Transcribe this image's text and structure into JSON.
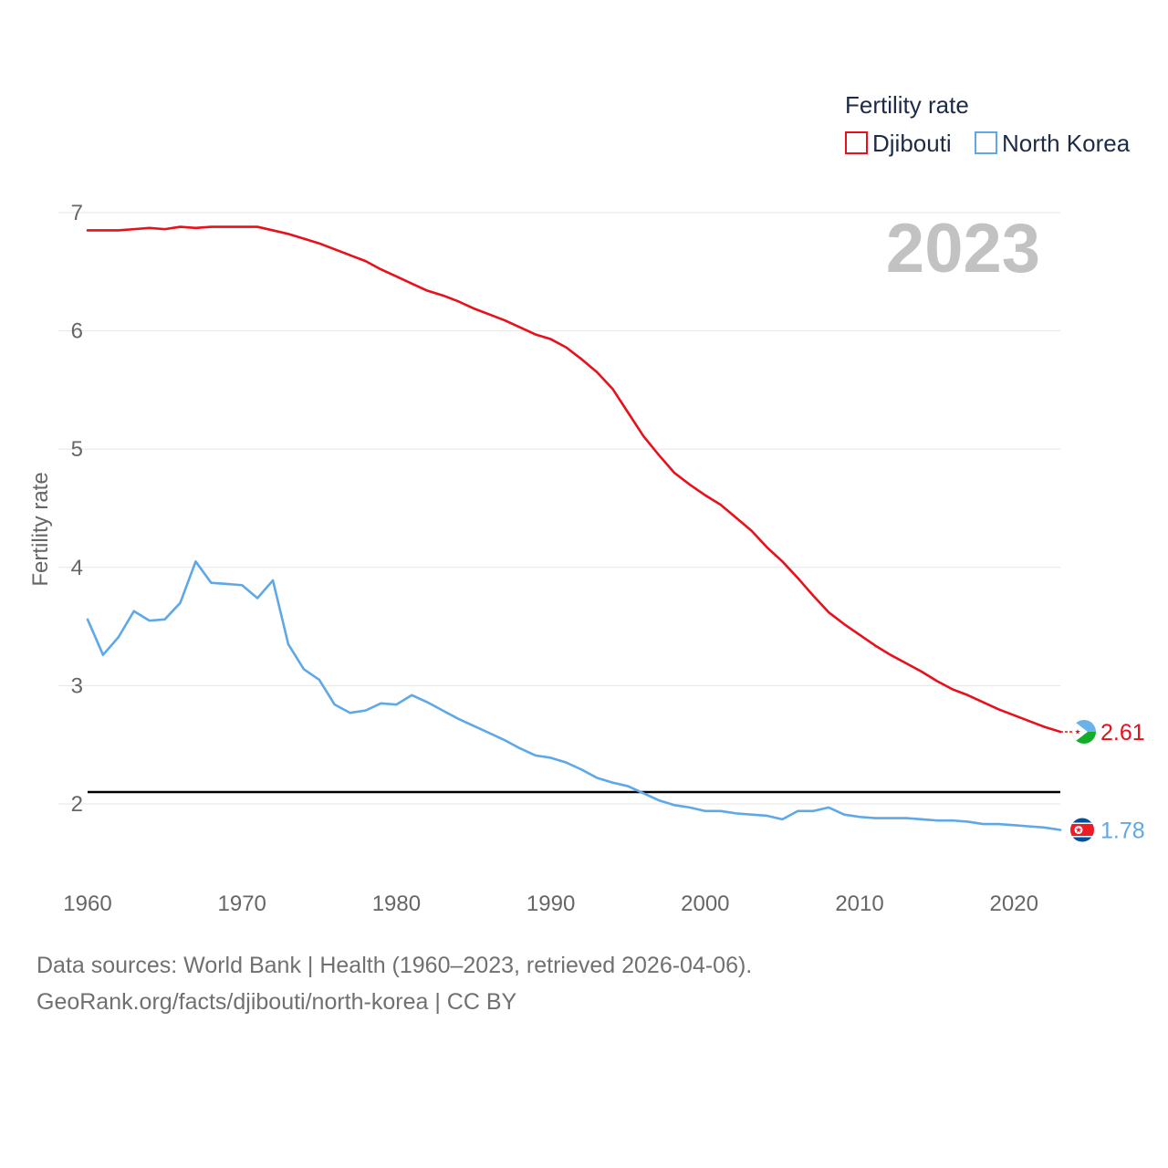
{
  "chart_data": {
    "type": "line",
    "ylabel": "Fertility rate",
    "xlabel": "",
    "xlim": [
      1960,
      2023
    ],
    "ylim": [
      1.45,
      7.1
    ],
    "x_ticks": [
      "1960",
      "1970",
      "1980",
      "1990",
      "2000",
      "2010",
      "2020"
    ],
    "y_ticks": [
      "2",
      "3",
      "4",
      "5",
      "6",
      "7"
    ],
    "grid": true,
    "legend": {
      "title": "Fertility rate",
      "placement": "top-right",
      "entries": [
        "Djibouti",
        "North Korea"
      ]
    },
    "year_watermark": "2023",
    "reference_line": {
      "value": 2.1
    },
    "x": [
      1960,
      1961,
      1962,
      1963,
      1964,
      1965,
      1966,
      1967,
      1968,
      1969,
      1970,
      1971,
      1972,
      1973,
      1974,
      1975,
      1976,
      1977,
      1978,
      1979,
      1980,
      1981,
      1982,
      1983,
      1984,
      1985,
      1986,
      1987,
      1988,
      1989,
      1990,
      1991,
      1992,
      1993,
      1994,
      1995,
      1996,
      1997,
      1998,
      1999,
      2000,
      2001,
      2002,
      2003,
      2004,
      2005,
      2006,
      2007,
      2008,
      2009,
      2010,
      2011,
      2012,
      2013,
      2014,
      2015,
      2016,
      2017,
      2018,
      2019,
      2020,
      2021,
      2022,
      2023
    ],
    "series": [
      {
        "name": "Djibouti",
        "color": "#e8101a",
        "end_label": "2.61",
        "values": [
          6.85,
          6.85,
          6.85,
          6.86,
          6.87,
          6.86,
          6.88,
          6.87,
          6.88,
          6.88,
          6.88,
          6.88,
          6.85,
          6.82,
          6.78,
          6.74,
          6.69,
          6.64,
          6.59,
          6.52,
          6.46,
          6.4,
          6.34,
          6.3,
          6.25,
          6.19,
          6.14,
          6.09,
          6.03,
          5.97,
          5.93,
          5.86,
          5.76,
          5.65,
          5.51,
          5.31,
          5.11,
          4.95,
          4.8,
          4.7,
          4.61,
          4.53,
          4.42,
          4.31,
          4.17,
          4.05,
          3.91,
          3.76,
          3.62,
          3.52,
          3.43,
          3.34,
          3.26,
          3.19,
          3.12,
          3.04,
          2.97,
          2.92,
          2.86,
          2.8,
          2.75,
          2.7,
          2.65,
          2.61
        ]
      },
      {
        "name": "North Korea",
        "color": "#5ea8e8",
        "end_label": "1.78",
        "values": [
          3.56,
          3.26,
          3.41,
          3.63,
          3.55,
          3.56,
          3.7,
          4.05,
          3.87,
          3.86,
          3.85,
          3.74,
          3.89,
          3.35,
          3.14,
          3.05,
          2.84,
          2.77,
          2.79,
          2.85,
          2.84,
          2.92,
          2.86,
          2.79,
          2.72,
          2.66,
          2.6,
          2.54,
          2.47,
          2.41,
          2.39,
          2.35,
          2.29,
          2.22,
          2.18,
          2.15,
          2.09,
          2.03,
          1.99,
          1.97,
          1.94,
          1.94,
          1.92,
          1.91,
          1.9,
          1.87,
          1.94,
          1.94,
          1.97,
          1.91,
          1.89,
          1.88,
          1.88,
          1.88,
          1.87,
          1.86,
          1.86,
          1.85,
          1.83,
          1.83,
          1.82,
          1.81,
          1.8,
          1.78
        ]
      }
    ]
  },
  "footer": {
    "line1": "Data sources: World Bank | Health (1960–2023, retrieved 2026-04-06).",
    "line2": "GeoRank.org/facts/djibouti/north-korea | CC BY"
  },
  "flags": {
    "djibouti": {
      "top": "#6ab2e7",
      "bottom": "#12ad2b",
      "triangle": "#ffffff",
      "star": "#d7141a"
    },
    "north_korea": {
      "blue": "#024fa2",
      "red": "#ed1c27",
      "white": "#ffffff"
    }
  }
}
